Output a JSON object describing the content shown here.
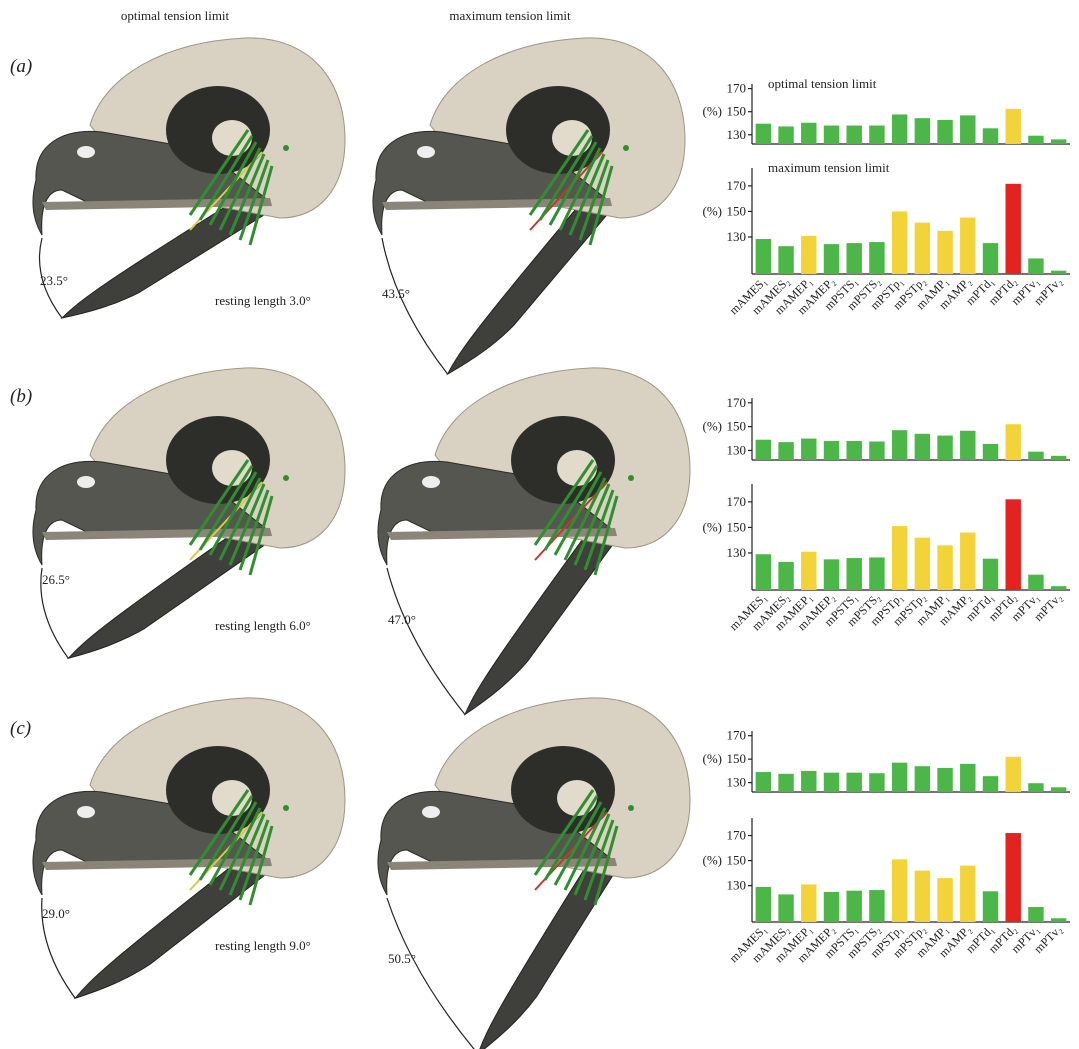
{
  "figure": {
    "column_titles": [
      "optimal tension limit",
      "maximum tension limit"
    ],
    "panels": [
      {
        "label": "(a)",
        "optimal_angle": "23.5°",
        "maximum_angle": "43.5°",
        "resting_length": "resting length 3.0°"
      },
      {
        "label": "(b)",
        "optimal_angle": "26.5°",
        "maximum_angle": "47.0°",
        "resting_length": "resting length 6.0°"
      },
      {
        "label": "(c)",
        "optimal_angle": "29.0°",
        "maximum_angle": "50.5°",
        "resting_length": "resting length 9.0°"
      }
    ]
  },
  "chart_data": [
    {
      "type": "bar",
      "title": "optimal tension limit",
      "y_label": "(%)",
      "values": [
        139.6,
        137.2,
        140.4,
        138,
        138,
        138,
        147.6,
        144.4,
        142.8,
        146.8,
        135.6,
        152.4,
        129.2,
        126
      ],
      "colors": [
        "#4cb748",
        "#4cb748",
        "#4cb748",
        "#4cb748",
        "#4cb748",
        "#4cb748",
        "#4cb748",
        "#4cb748",
        "#4cb748",
        "#4cb748",
        "#4cb748",
        "#f2d43a",
        "#4cb748",
        "#4cb748"
      ],
      "ylim": [
        122,
        174
      ],
      "yticks": [
        130,
        150,
        170
      ]
    },
    {
      "type": "bar",
      "title": "maximum tension limit",
      "y_label": "(%)",
      "categories": [
        "mAMES₁",
        "mAMES₂",
        "mAMEP₁",
        "mAMEP₂",
        "mPSTS₁",
        "mPSTS₂",
        "mPSTp₁",
        "mPSTp₂",
        "mAMP₁",
        "mAMP₂",
        "mPTd₁",
        "mPTd₂",
        "mPTv₁",
        "mPTv₂"
      ],
      "values": [
        128.4,
        122.8,
        130.8,
        124.4,
        125.2,
        126,
        150,
        141.2,
        134.8,
        145.2,
        125.2,
        171.6,
        113.2,
        103.6
      ],
      "colors": [
        "#4cb748",
        "#4cb748",
        "#f2d43a",
        "#4cb748",
        "#4cb748",
        "#4cb748",
        "#f2d43a",
        "#f2d43a",
        "#f2d43a",
        "#f2d43a",
        "#4cb748",
        "#e42320",
        "#4cb748",
        "#4cb748"
      ],
      "ylim": [
        101,
        184
      ],
      "yticks": [
        130,
        150,
        170
      ]
    },
    {
      "type": "bar",
      "y_label": "(%)",
      "values": [
        139,
        137,
        140,
        138,
        138,
        137.5,
        147,
        144,
        142.5,
        146.5,
        135.5,
        152,
        129,
        125.5
      ],
      "colors": [
        "#4cb748",
        "#4cb748",
        "#4cb748",
        "#4cb748",
        "#4cb748",
        "#4cb748",
        "#4cb748",
        "#4cb748",
        "#4cb748",
        "#4cb748",
        "#4cb748",
        "#f2d43a",
        "#4cb748",
        "#4cb748"
      ],
      "ylim": [
        122,
        174
      ],
      "yticks": [
        130,
        150,
        170
      ]
    },
    {
      "type": "bar",
      "y_label": "(%)",
      "categories": [
        "mAMES₁",
        "mAMES₂",
        "mAMEP₁",
        "mAMEP₂",
        "mPSTS₁",
        "mPSTS₂",
        "mPSTp₁",
        "mPSTp₂",
        "mAMP₁",
        "mAMP₂",
        "mPTd₁",
        "mPTd₂",
        "mPTv₁",
        "mPTv₂"
      ],
      "values": [
        129,
        123,
        131,
        125,
        126,
        126.5,
        151,
        142,
        136,
        146,
        125.5,
        172,
        113,
        104
      ],
      "colors": [
        "#4cb748",
        "#4cb748",
        "#f2d43a",
        "#4cb748",
        "#4cb748",
        "#4cb748",
        "#f2d43a",
        "#f2d43a",
        "#f2d43a",
        "#f2d43a",
        "#4cb748",
        "#e42320",
        "#4cb748",
        "#4cb748"
      ],
      "ylim": [
        101,
        184
      ],
      "yticks": [
        130,
        150,
        170
      ]
    },
    {
      "type": "bar",
      "y_label": "(%)",
      "values": [
        139,
        137.5,
        140,
        138.5,
        138.5,
        138,
        147,
        144,
        142.5,
        146,
        135.5,
        152,
        129.5,
        126
      ],
      "colors": [
        "#4cb748",
        "#4cb748",
        "#4cb748",
        "#4cb748",
        "#4cb748",
        "#4cb748",
        "#4cb748",
        "#4cb748",
        "#4cb748",
        "#4cb748",
        "#4cb748",
        "#f2d43a",
        "#4cb748",
        "#4cb748"
      ],
      "ylim": [
        122,
        174
      ],
      "yticks": [
        130,
        150,
        170
      ]
    },
    {
      "type": "bar",
      "y_label": "(%)",
      "categories": [
        "mAMES₁",
        "mAMES₂",
        "mAMEP₁",
        "mAMEP₂",
        "mPSTS₁",
        "mPSTS₂",
        "mPSTp₁",
        "mPSTp₂",
        "mAMP₁",
        "mAMP₂",
        "mPTd₁",
        "mPTd₂",
        "mPTv₁",
        "mPTv₂"
      ],
      "values": [
        129,
        123,
        131,
        125,
        126,
        126.5,
        151,
        142,
        136,
        146,
        125.5,
        172,
        113,
        104
      ],
      "colors": [
        "#4cb748",
        "#4cb748",
        "#f2d43a",
        "#4cb748",
        "#4cb748",
        "#4cb748",
        "#f2d43a",
        "#f2d43a",
        "#f2d43a",
        "#f2d43a",
        "#4cb748",
        "#e42320",
        "#4cb748",
        "#4cb748"
      ],
      "ylim": [
        101,
        184
      ],
      "yticks": [
        130,
        150,
        170
      ]
    }
  ]
}
